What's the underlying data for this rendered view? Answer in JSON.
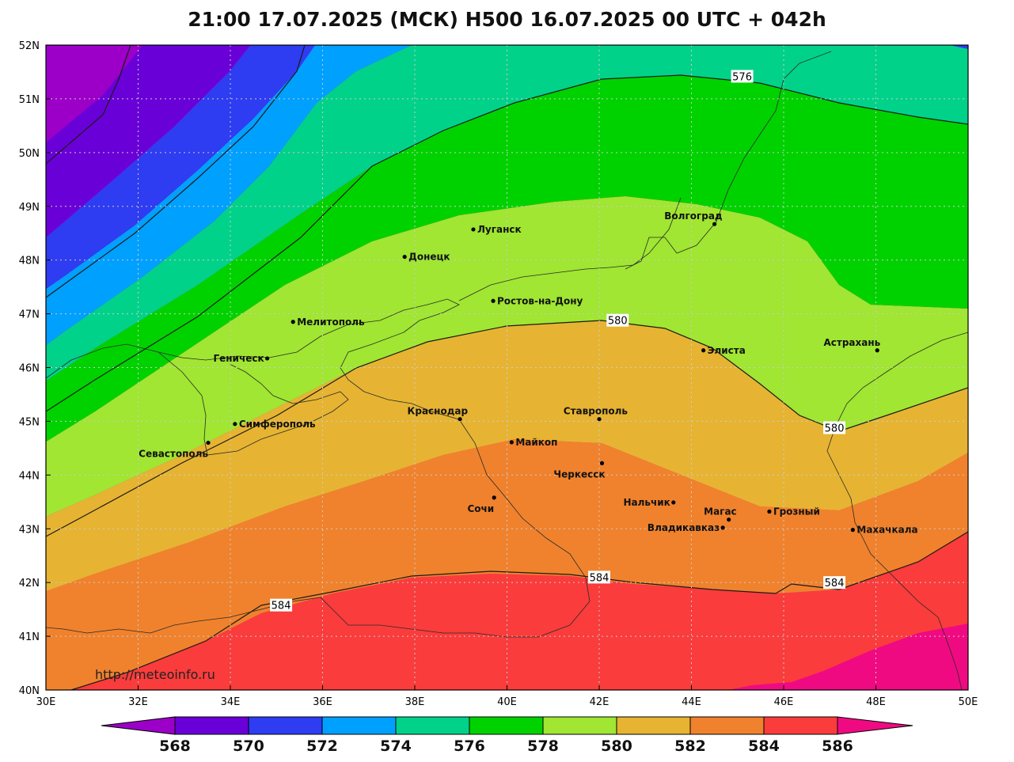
{
  "title": "21:00 17.07.2025 (МСК) H500  16.07.2025 00 UTC + 042h",
  "source_label": "http://meteoinfo.ru",
  "map": {
    "lon_range": [
      30,
      50
    ],
    "lat_range": [
      40,
      52
    ],
    "x_ticks": [
      {
        "lon": 30,
        "label": "30E"
      },
      {
        "lon": 32,
        "label": "32E"
      },
      {
        "lon": 34,
        "label": "34E"
      },
      {
        "lon": 36,
        "label": "36E"
      },
      {
        "lon": 38,
        "label": "38E"
      },
      {
        "lon": 40,
        "label": "40E"
      },
      {
        "lon": 42,
        "label": "42E"
      },
      {
        "lon": 44,
        "label": "44E"
      },
      {
        "lon": 46,
        "label": "46E"
      },
      {
        "lon": 48,
        "label": "48E"
      },
      {
        "lon": 50,
        "label": "50E"
      }
    ],
    "y_ticks": [
      {
        "lat": 40,
        "label": "40N"
      },
      {
        "lat": 41,
        "label": "41N"
      },
      {
        "lat": 42,
        "label": "42N"
      },
      {
        "lat": 43,
        "label": "43N"
      },
      {
        "lat": 44,
        "label": "44N"
      },
      {
        "lat": 45,
        "label": "45N"
      },
      {
        "lat": 46,
        "label": "46N"
      },
      {
        "lat": 47,
        "label": "47N"
      },
      {
        "lat": 48,
        "label": "48N"
      },
      {
        "lat": 49,
        "label": "49N"
      },
      {
        "lat": 50,
        "label": "50N"
      },
      {
        "lat": 51,
        "label": "51N"
      },
      {
        "lat": 52,
        "label": "52N"
      }
    ],
    "grid": true
  },
  "cities": [
    {
      "name": "Луганск",
      "lon": 39.27,
      "lat": 48.57
    },
    {
      "name": "Донецк",
      "lon": 37.78,
      "lat": 48.06
    },
    {
      "name": "Волгоград",
      "lon": 44.5,
      "lat": 48.67
    },
    {
      "name": "Ростов-на-Дону",
      "lon": 39.7,
      "lat": 47.24
    },
    {
      "name": "Мелитополь",
      "lon": 35.36,
      "lat": 46.85
    },
    {
      "name": "Элиста",
      "lon": 44.26,
      "lat": 46.32
    },
    {
      "name": "Астрахань",
      "lon": 48.03,
      "lat": 46.32
    },
    {
      "name": "Геническ",
      "lon": 34.8,
      "lat": 46.17
    },
    {
      "name": "Симферополь",
      "lon": 34.1,
      "lat": 44.95
    },
    {
      "name": "Краснодар",
      "lon": 38.98,
      "lat": 45.04
    },
    {
      "name": "Ставрополь",
      "lon": 42.0,
      "lat": 45.04
    },
    {
      "name": "Севастополь",
      "lon": 33.52,
      "lat": 44.6
    },
    {
      "name": "Майкоп",
      "lon": 40.1,
      "lat": 44.61
    },
    {
      "name": "Черкесск",
      "lon": 42.06,
      "lat": 44.22
    },
    {
      "name": "Нальчик",
      "lon": 43.61,
      "lat": 43.49
    },
    {
      "name": "Грозный",
      "lon": 45.69,
      "lat": 43.32
    },
    {
      "name": "Сочи",
      "lon": 39.72,
      "lat": 43.58
    },
    {
      "name": "Магас",
      "lon": 44.81,
      "lat": 43.17
    },
    {
      "name": "Махачкала",
      "lon": 47.5,
      "lat": 42.98
    },
    {
      "name": "Владикавказ",
      "lon": 44.68,
      "lat": 43.02
    }
  ],
  "contour_labels": [
    {
      "text": "576",
      "lon": 45.1,
      "lat": 51.42
    },
    {
      "text": "580",
      "lon": 42.4,
      "lat": 46.88
    },
    {
      "text": "580",
      "lon": 47.1,
      "lat": 44.88
    },
    {
      "text": "584",
      "lon": 35.1,
      "lat": 41.58
    },
    {
      "text": "584",
      "lon": 42.0,
      "lat": 42.1
    },
    {
      "text": "584",
      "lon": 47.1,
      "lat": 42.0
    }
  ],
  "colorbar": {
    "labels": [
      "568",
      "570",
      "572",
      "574",
      "576",
      "578",
      "580",
      "582",
      "584",
      "586"
    ],
    "colors": [
      "#9c00c8",
      "#6a00d8",
      "#2e3cf2",
      "#00a0ff",
      "#00d28a",
      "#00d200",
      "#a0e632",
      "#e6b432",
      "#f0822d",
      "#fa3c3c",
      "#f00a82"
    ]
  }
}
